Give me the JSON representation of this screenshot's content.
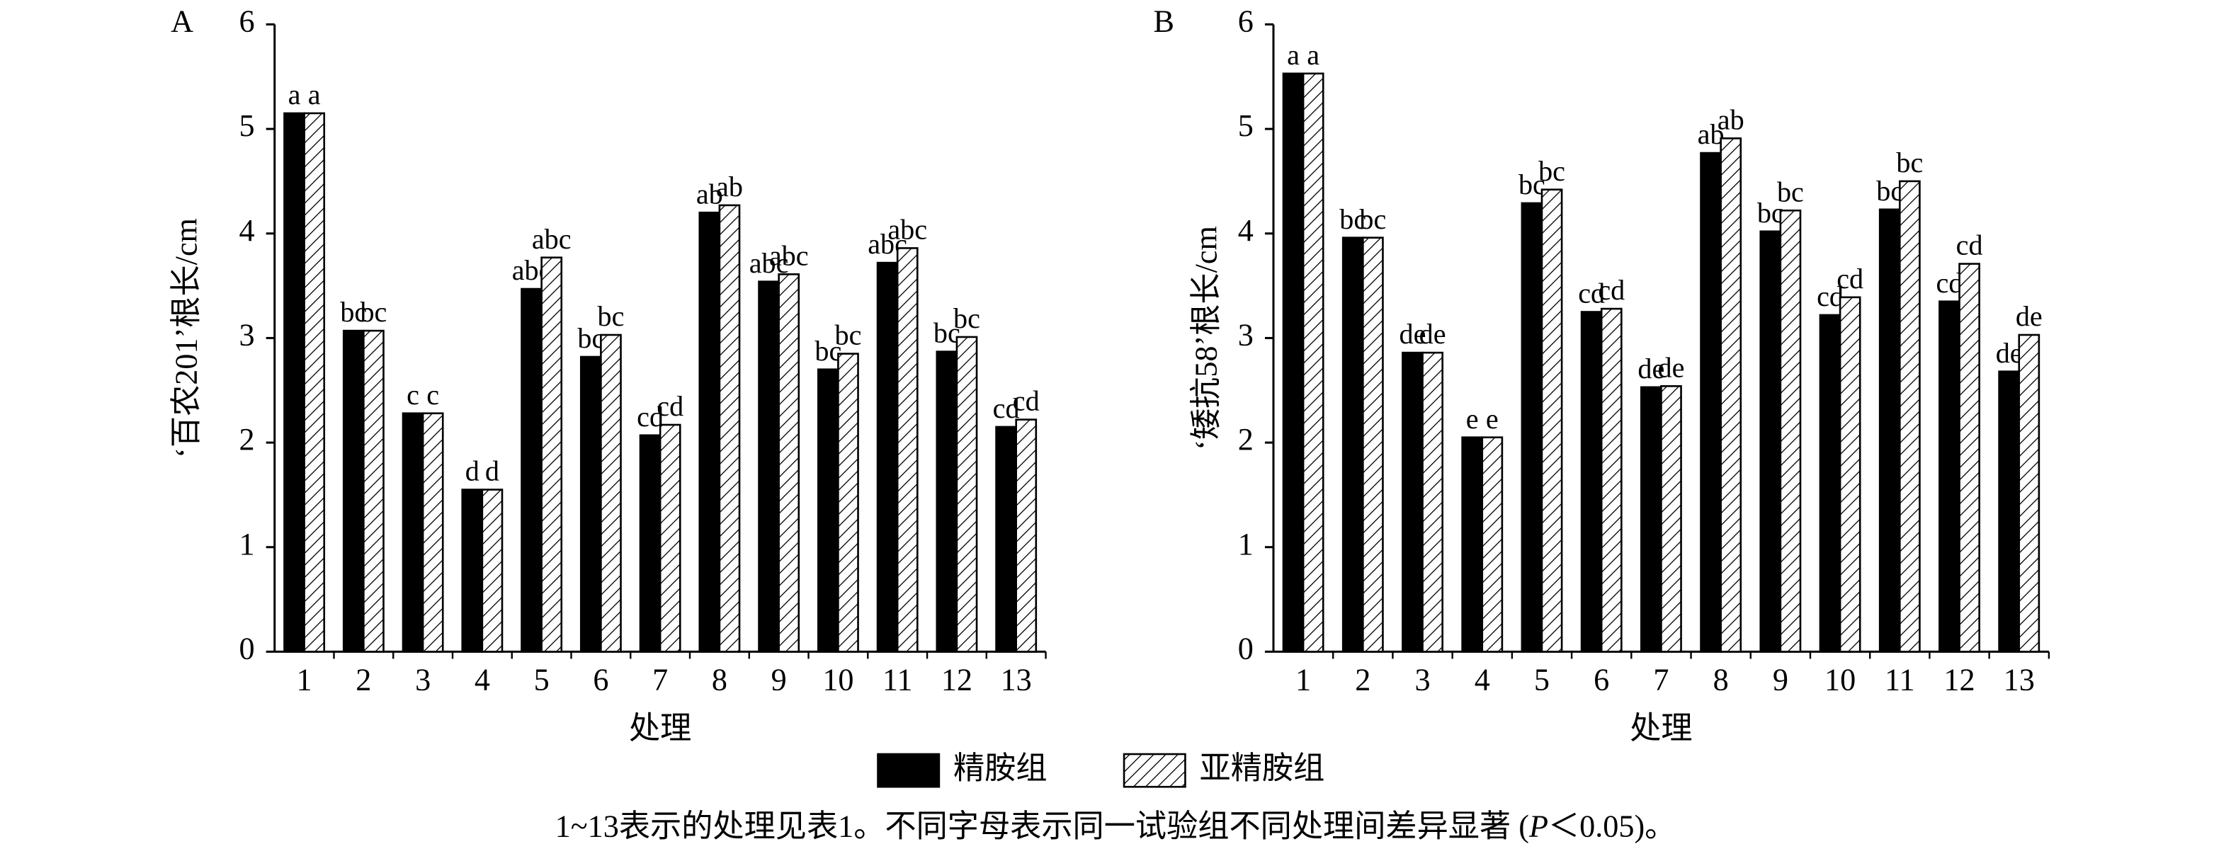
{
  "chart_data": [
    {
      "type": "bar",
      "panel": "A",
      "y_label": "‘百农201’根长/cm",
      "x_label": "处理",
      "categories": [
        "1",
        "2",
        "3",
        "4",
        "5",
        "6",
        "7",
        "8",
        "9",
        "10",
        "11",
        "12",
        "13"
      ],
      "series": [
        {
          "name": "精胺组",
          "color": "#000000",
          "hatch": false,
          "values": [
            5.15,
            3.07,
            2.28,
            1.55,
            3.47,
            2.82,
            2.07,
            4.2,
            3.54,
            2.7,
            3.72,
            2.87,
            2.15
          ],
          "labels": [
            "a",
            "bc",
            "c",
            "d",
            "abc",
            "bc",
            "cd",
            "ab",
            "abc",
            "bc",
            "abc",
            "bc",
            "cd"
          ]
        },
        {
          "name": "亚精胺组",
          "color": "#ffffff",
          "hatch": true,
          "values": [
            5.15,
            3.07,
            2.28,
            1.55,
            3.77,
            3.03,
            2.17,
            4.27,
            3.61,
            2.85,
            3.86,
            3.01,
            2.22
          ],
          "labels": [
            "a",
            "bc",
            "c",
            "d",
            "abc",
            "bc",
            "cd",
            "ab",
            "abc",
            "bc",
            "abc",
            "bc",
            "cd"
          ]
        }
      ],
      "ylim": [
        0,
        6
      ],
      "yticks": [
        0,
        1,
        2,
        3,
        4,
        5,
        6
      ]
    },
    {
      "type": "bar",
      "panel": "B",
      "y_label": "‘矮抗58’根长/cm",
      "x_label": "处理",
      "categories": [
        "1",
        "2",
        "3",
        "4",
        "5",
        "6",
        "7",
        "8",
        "9",
        "10",
        "11",
        "12",
        "13"
      ],
      "series": [
        {
          "name": "精胺组",
          "color": "#000000",
          "hatch": false,
          "values": [
            5.53,
            3.96,
            2.86,
            2.05,
            4.29,
            3.25,
            2.53,
            4.77,
            4.02,
            3.22,
            4.23,
            3.35,
            2.68
          ],
          "labels": [
            "a",
            "bc",
            "de",
            "e",
            "bc",
            "cd",
            "de",
            "ab",
            "bc",
            "cd",
            "bc",
            "cd",
            "de"
          ]
        },
        {
          "name": "亚精胺组",
          "color": "#ffffff",
          "hatch": true,
          "values": [
            5.53,
            3.96,
            2.86,
            2.05,
            4.42,
            3.28,
            2.54,
            4.91,
            4.22,
            3.39,
            4.5,
            3.71,
            3.03
          ],
          "labels": [
            "a",
            "bc",
            "de",
            "e",
            "bc",
            "cd",
            "de",
            "ab",
            "bc",
            "cd",
            "bc",
            "cd",
            "de"
          ]
        }
      ],
      "ylim": [
        0,
        6
      ],
      "yticks": [
        0,
        1,
        2,
        3,
        4,
        5,
        6
      ]
    }
  ],
  "caption": [
    "1~13表示的处理见表1。不同字母表示同一试验组不同处理间差异显著 (",
    "P",
    "＜0.05)。"
  ]
}
